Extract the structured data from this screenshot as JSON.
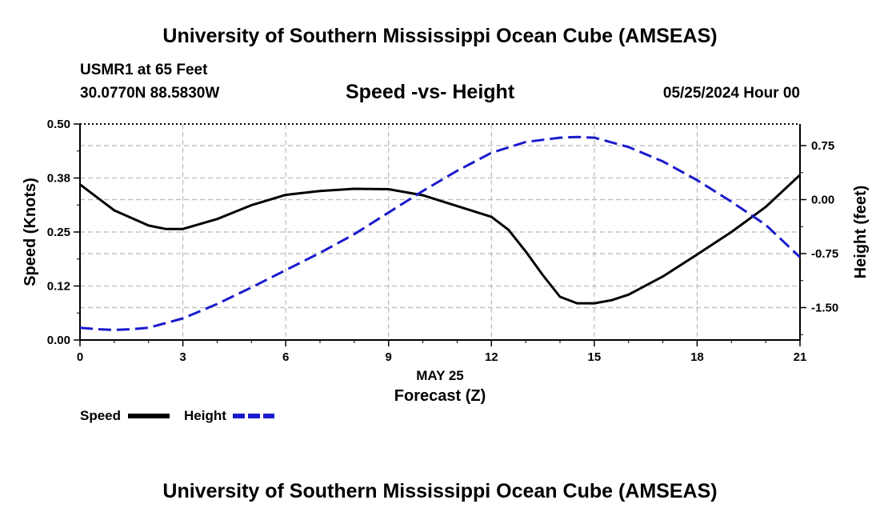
{
  "header": {
    "title": "University of Southern Mississippi Ocean Cube (AMSEAS)",
    "station": "USMR1 at 65 Feet",
    "coords": "30.0770N  88.5830W",
    "chart_title": "Speed -vs- Height",
    "date": "05/25/2024 Hour 00"
  },
  "footer": {
    "title": "University of Southern Mississippi Ocean Cube (AMSEAS)"
  },
  "legend": {
    "speed_label": "Speed",
    "height_label": "Height"
  },
  "colors": {
    "speed": "#000000",
    "height": "#1a1acc",
    "grid": "#bbbbbb"
  },
  "chart_data": {
    "type": "line",
    "title": "Speed -vs- Height",
    "xlabel": "Forecast (Z)",
    "xsublabel": "MAY 25",
    "ylabel": "Speed (Knots)",
    "y2label": "Height (feet)",
    "xlim": [
      0,
      21
    ],
    "ylim": [
      0,
      0.5
    ],
    "y2lim": [
      -1.95,
      1.05
    ],
    "xticks": [
      0,
      3,
      6,
      9,
      12,
      15,
      18,
      21
    ],
    "yticks": [
      0.0,
      0.125,
      0.25,
      0.375,
      0.5
    ],
    "ytick_labels": [
      "0.00",
      "0.12",
      "0.25",
      "0.38",
      "0.50"
    ],
    "y2ticks": [
      -1.5,
      -0.75,
      0.0,
      0.75
    ],
    "y2tick_labels": [
      "-1.50",
      "-0.75",
      "0.00",
      "0.75"
    ],
    "grid": true,
    "series": [
      {
        "name": "Speed",
        "axis": "left",
        "style": "solid",
        "x": [
          0,
          1,
          2,
          2.5,
          3,
          4,
          5,
          6,
          7,
          8,
          9,
          10,
          11,
          12,
          12.5,
          13,
          13.5,
          14,
          14.5,
          15,
          15.5,
          16,
          17,
          18,
          19,
          20,
          21
        ],
        "values": [
          0.36,
          0.3,
          0.265,
          0.257,
          0.257,
          0.28,
          0.312,
          0.336,
          0.345,
          0.35,
          0.349,
          0.335,
          0.31,
          0.285,
          0.255,
          0.205,
          0.15,
          0.1,
          0.085,
          0.085,
          0.092,
          0.105,
          0.147,
          0.198,
          0.25,
          0.308,
          0.382
        ]
      },
      {
        "name": "Height",
        "axis": "right",
        "style": "dashed",
        "x": [
          0,
          0.5,
          1,
          1.5,
          2,
          3,
          4,
          5,
          6,
          7,
          8,
          9,
          10,
          11,
          12,
          13,
          14,
          14.5,
          15,
          16,
          17,
          18,
          19,
          20,
          21
        ],
        "values": [
          -1.78,
          -1.8,
          -1.81,
          -1.8,
          -1.78,
          -1.65,
          -1.45,
          -1.22,
          -0.98,
          -0.74,
          -0.48,
          -0.18,
          0.12,
          0.4,
          0.65,
          0.8,
          0.86,
          0.87,
          0.86,
          0.73,
          0.53,
          0.27,
          -0.03,
          -0.35,
          -0.8
        ]
      }
    ]
  }
}
